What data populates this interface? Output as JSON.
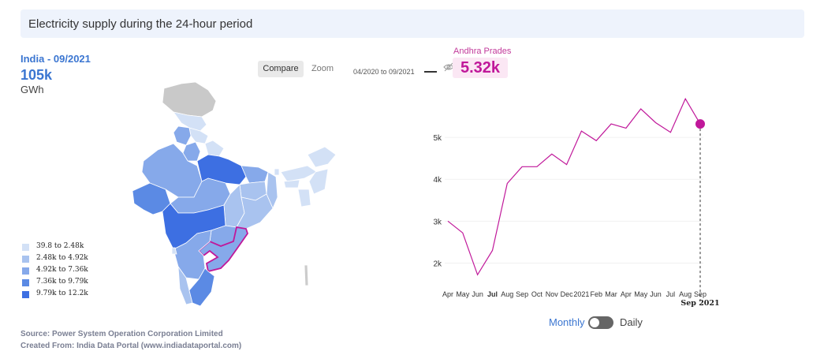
{
  "header": {
    "title": "Electricity supply during the 24-hour period"
  },
  "summary": {
    "region": "India - 09/2021",
    "value": "105k",
    "unit": "GWh"
  },
  "controls": {
    "compare_label": "Compare",
    "zoom_label": "Zoom",
    "range_label": "04/2020 to 09/2021",
    "mode_monthly": "Monthly",
    "mode_daily": "Daily",
    "mode_daily_active": false
  },
  "selection": {
    "name": "Andhra Prades",
    "value": "5.32k",
    "color": "#c0189a"
  },
  "legend": [
    {
      "label": "39.8 to 2.48k",
      "color": "#d3e1f6"
    },
    {
      "label": "2.48k to 4.92k",
      "color": "#a9c3ef"
    },
    {
      "label": "4.92k to 7.36k",
      "color": "#86a9ea"
    },
    {
      "label": "7.36k to 9.79k",
      "color": "#5b8ae4"
    },
    {
      "label": "9.79k to 12.2k",
      "color": "#3d6fe2"
    }
  ],
  "footer": {
    "source": "Source: Power System Operation Corporation Limited",
    "created": "Created From: India Data Portal (www.indiadataportal.com)"
  },
  "chart_data": {
    "type": "line",
    "x": [
      "Apr",
      "May",
      "Jun",
      "Jul",
      "Aug",
      "Sep",
      "Oct",
      "Nov",
      "Dec",
      "2021",
      "Feb",
      "Mar",
      "Apr",
      "May",
      "Jun",
      "Jul",
      "Aug",
      "Sep"
    ],
    "bold_ticks": [
      "Jul"
    ],
    "series": [
      {
        "name": "Andhra Prades",
        "color": "#c0189a",
        "values": [
          3.0,
          2.72,
          1.72,
          2.3,
          3.9,
          4.3,
          4.3,
          4.6,
          4.35,
          5.15,
          4.92,
          5.32,
          5.22,
          5.68,
          5.35,
          5.12,
          5.92,
          5.32
        ]
      }
    ],
    "yticks": [
      2,
      3,
      4,
      5
    ],
    "ytick_labels": [
      "2k",
      "3k",
      "4k",
      "5k"
    ],
    "ylim": [
      1.5,
      6.15
    ],
    "cursor_label": "Sep 2021",
    "cursor_index": 17
  }
}
